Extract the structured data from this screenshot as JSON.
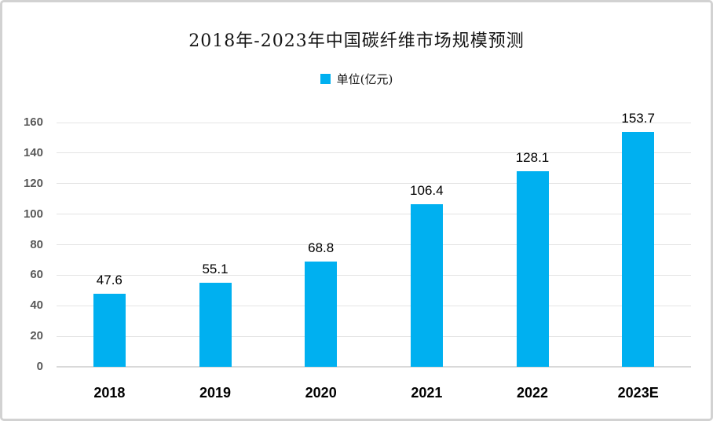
{
  "chart_data": {
    "type": "bar",
    "title": "2018年-2023年中国碳纤维市场规模预测",
    "legend_label": "单位(亿元)",
    "legend_position": "top",
    "categories": [
      "2018",
      "2019",
      "2020",
      "2021",
      "2022",
      "2023E"
    ],
    "values": [
      47.6,
      55.1,
      68.8,
      106.4,
      128.1,
      153.7
    ],
    "xlabel": "",
    "ylabel": "",
    "ylim": [
      0,
      160
    ],
    "yticks": [
      0,
      20,
      40,
      60,
      80,
      100,
      120,
      140,
      160
    ],
    "grid": true,
    "colors": {
      "bar": "#00B0F0",
      "axis_tick_label": "#595959",
      "gridline": "#e4e4e4",
      "data_label": "#000000",
      "category_label": "#000000",
      "frame_border": "#d2d2d2"
    }
  }
}
